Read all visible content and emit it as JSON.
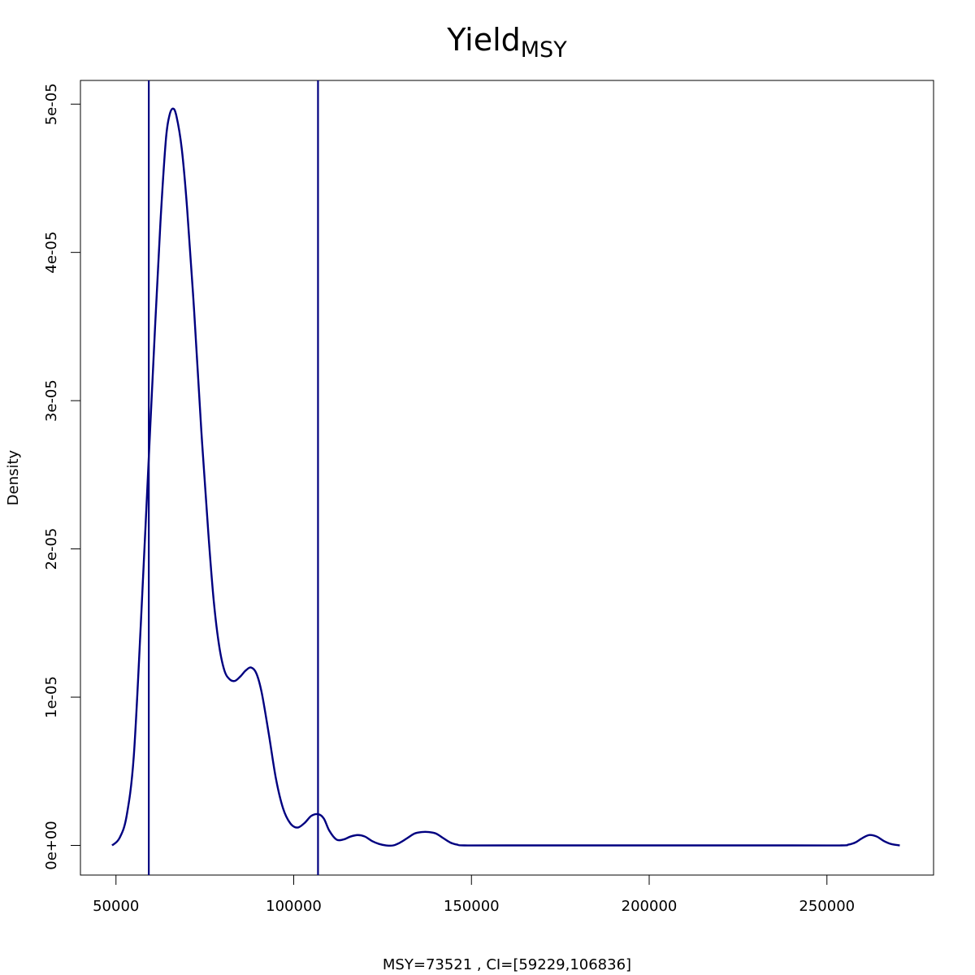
{
  "chart_data": {
    "type": "line",
    "title": "Yield",
    "title_subscript": "MSY",
    "xlabel": "MSY=73521 , CI=[59229,106836]",
    "ylabel": "Density",
    "xlim": [
      40000,
      280000
    ],
    "ylim": [
      -2e-06,
      5.16e-05
    ],
    "x_ticks": [
      {
        "value": 50000,
        "label": "50000"
      },
      {
        "value": 100000,
        "label": "100000"
      },
      {
        "value": 150000,
        "label": "150000"
      },
      {
        "value": 200000,
        "label": "200000"
      },
      {
        "value": 250000,
        "label": "250000"
      }
    ],
    "y_ticks": [
      {
        "value": 0,
        "label": "0e+00"
      },
      {
        "value": 1e-05,
        "label": "1e-05"
      },
      {
        "value": 2e-05,
        "label": "2e-05"
      },
      {
        "value": 3e-05,
        "label": "3e-05"
      },
      {
        "value": 4e-05,
        "label": "4e-05"
      },
      {
        "value": 5e-05,
        "label": "5e-05"
      }
    ],
    "grid": false,
    "line_color": "#000080",
    "vlines": [
      59229,
      106836
    ],
    "series": [
      {
        "points": [
          [
            48900,
            0.0
          ],
          [
            51000,
            5e-07
          ],
          [
            53000,
            2e-06
          ],
          [
            55000,
            6e-06
          ],
          [
            57000,
            1.5e-05
          ],
          [
            59000,
            2.5e-05
          ],
          [
            61000,
            3.5e-05
          ],
          [
            62500,
            4.2e-05
          ],
          [
            64000,
            4.75e-05
          ],
          [
            65000,
            4.92e-05
          ],
          [
            66000,
            4.97e-05
          ],
          [
            67000,
            4.92e-05
          ],
          [
            68500,
            4.7e-05
          ],
          [
            70000,
            4.3e-05
          ],
          [
            72000,
            3.6e-05
          ],
          [
            74000,
            2.8e-05
          ],
          [
            76000,
            2.1e-05
          ],
          [
            77500,
            1.65e-05
          ],
          [
            79000,
            1.35e-05
          ],
          [
            80500,
            1.18e-05
          ],
          [
            82000,
            1.12e-05
          ],
          [
            83500,
            1.11e-05
          ],
          [
            85000,
            1.14e-05
          ],
          [
            86500,
            1.18e-05
          ],
          [
            88000,
            1.2e-05
          ],
          [
            89500,
            1.16e-05
          ],
          [
            91000,
            1.03e-05
          ],
          [
            93000,
            7.5e-06
          ],
          [
            95000,
            4.5e-06
          ],
          [
            97000,
            2.5e-06
          ],
          [
            99000,
            1.5e-06
          ],
          [
            101000,
            1.2e-06
          ],
          [
            103000,
            1.5e-06
          ],
          [
            105000,
            2e-06
          ],
          [
            107000,
            2.1e-06
          ],
          [
            108500,
            1.8e-06
          ],
          [
            110000,
            1e-06
          ],
          [
            112000,
            4e-07
          ],
          [
            114000,
            4e-07
          ],
          [
            116000,
            6e-07
          ],
          [
            118000,
            7e-07
          ],
          [
            120000,
            6e-07
          ],
          [
            122000,
            3e-07
          ],
          [
            124000,
            1e-07
          ],
          [
            126000,
            0.0
          ],
          [
            128000,
            0.0
          ],
          [
            130000,
            2e-07
          ],
          [
            132000,
            5e-07
          ],
          [
            134000,
            8e-07
          ],
          [
            136000,
            9e-07
          ],
          [
            138000,
            9e-07
          ],
          [
            140000,
            8e-07
          ],
          [
            142000,
            5e-07
          ],
          [
            144000,
            2e-07
          ],
          [
            146000,
            5e-08
          ],
          [
            148000,
            0.0
          ],
          [
            160000,
            0.0
          ],
          [
            200000,
            0.0
          ],
          [
            240000,
            0.0
          ],
          [
            254000,
            0.0
          ],
          [
            256000,
            5e-08
          ],
          [
            258000,
            2e-07
          ],
          [
            260000,
            5e-07
          ],
          [
            262000,
            7e-07
          ],
          [
            264000,
            6e-07
          ],
          [
            266000,
            3e-07
          ],
          [
            268000,
            1e-07
          ],
          [
            270500,
            0.0
          ]
        ]
      }
    ]
  }
}
